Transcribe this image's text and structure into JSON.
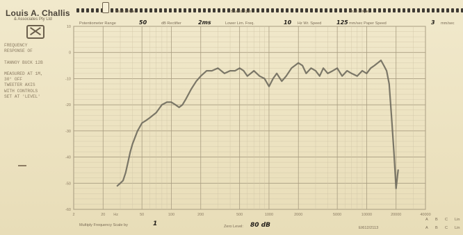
{
  "brand": {
    "name": "Louis A. Challis",
    "subtitle": "& Associates Pty Ltd"
  },
  "note_lines": [
    "FREQUENCY",
    "RESPONSE OF",
    "",
    "TANNOY BUCK 12B",
    "",
    "MEASURED AT 1M,",
    "30° OFF",
    "TWEETER AXIS",
    "WITH CONTROLS",
    "SET AT 'LEVEL'"
  ],
  "scale_tabs": [
    "Bruel & Kjær",
    "Bruel & Kjær",
    "Bruel & Kjær"
  ],
  "header": {
    "range_label": "Potentiometer Range",
    "range_value": "50",
    "rectifier_label": "dB Rectifier",
    "rectifier_value": "2ms",
    "lower_lim_label": "Lower Lim. Freq.",
    "lower_lim_value": "10",
    "wr_speed_label": "Hz  Wr. Speed",
    "wr_speed_value": "125",
    "paper_speed_label": "mm/sec  Paper Speed",
    "paper_speed_value": "3",
    "paper_speed_unit": "mm/sec"
  },
  "footer": {
    "multiply_label": "Multiply Frequency Scale by",
    "multiply_value": "1",
    "zero_label": "Zero Level:",
    "zero_value": "80 dB",
    "ref_code": "EI612/2113",
    "abc_top": [
      "A",
      "B",
      "C",
      "Lin"
    ],
    "abc_bottom": [
      "A",
      "B",
      "C",
      "Lin"
    ]
  },
  "chart_data": {
    "type": "line",
    "title": "",
    "xlabel": "Hz",
    "ylabel": "dB",
    "x_scale": "log",
    "xlim": [
      10,
      40000
    ],
    "ylim": [
      -60,
      10
    ],
    "grid": true,
    "x_ticks": [
      "2",
      "20",
      "Hz",
      "50",
      "100",
      "200",
      "500",
      "1000",
      "2000",
      "5000",
      "10000",
      "20000",
      "40000"
    ],
    "y_ticks": [
      "10",
      "0",
      "-10",
      "-20",
      "-30",
      "-40",
      "-50",
      "-60"
    ],
    "series": [
      {
        "values_x": [
          28,
          30,
          32,
          34,
          36,
          38,
          40,
          45,
          50,
          55,
          60,
          70,
          80,
          90,
          100,
          110,
          120,
          130,
          140,
          160,
          180,
          200,
          230,
          260,
          300,
          350,
          400,
          450,
          500,
          550,
          600,
          650,
          700,
          800,
          900,
          1000,
          1100,
          1200,
          1350,
          1500,
          1700,
          2000,
          2200,
          2400,
          2700,
          3000,
          3300,
          3600,
          4000,
          4500,
          5000,
          5600,
          6300,
          7000,
          8000,
          9000,
          10000,
          11000,
          12000,
          13000,
          14000,
          15000,
          16000,
          17000,
          18000,
          19000,
          20000,
          21000
        ],
        "values_y": [
          -51,
          -50,
          -49,
          -46,
          -42,
          -38,
          -35,
          -30,
          -27,
          -26,
          -25,
          -23,
          -20,
          -19,
          -19,
          -20,
          -21,
          -20,
          -18,
          -14,
          -11,
          -9,
          -7,
          -7,
          -6,
          -8,
          -7,
          -7,
          -6,
          -7,
          -9,
          -8,
          -7,
          -9,
          -10,
          -13,
          -10,
          -8,
          -11,
          -9,
          -6,
          -4,
          -5,
          -8,
          -6,
          -7,
          -9,
          -6,
          -8,
          -7,
          -6,
          -9,
          -7,
          -8,
          -9,
          -7,
          -8,
          -6,
          -5,
          -4,
          -3,
          -5,
          -7,
          -12,
          -25,
          -38,
          -52,
          -45
        ]
      }
    ]
  }
}
